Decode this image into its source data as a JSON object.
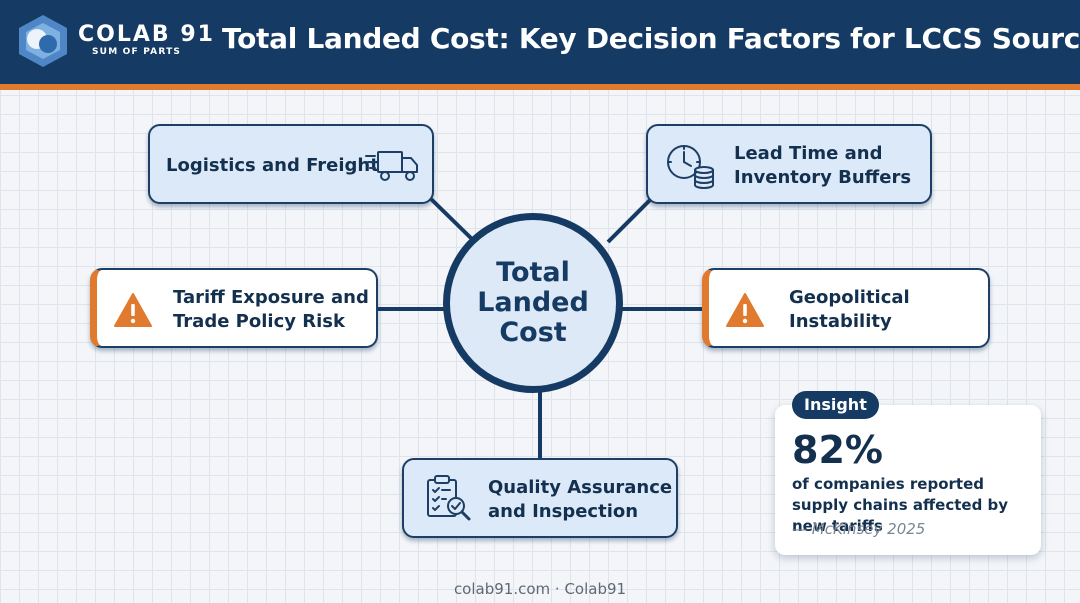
{
  "brand": {
    "name": "COLAB 91",
    "tagline": "SUM OF PARTS"
  },
  "title": "Total Landed Cost: Key Decision Factors for LCCS Sourcing",
  "hub": {
    "label": "Total Landed Cost"
  },
  "factors": {
    "logistics": {
      "label_line1": "Logistics and Freight",
      "icon": "delivery-truck-icon"
    },
    "lead_time": {
      "label_line1": "Lead Time and",
      "label_line2": "Inventory Buffers",
      "icon": "clock-coins-icon"
    },
    "tariff": {
      "label_line1": "Tariff Exposure and",
      "label_line2": "Trade Policy Risk",
      "icon": "warning-icon"
    },
    "geopolitical": {
      "label_line1": "Geopolitical",
      "label_line2": "Instability",
      "icon": "warning-icon"
    },
    "quality": {
      "label_line1": "Quality Assurance",
      "label_line2": "and Inspection",
      "icon": "clipboard-inspect-icon"
    }
  },
  "insight": {
    "badge": "Insight",
    "stat": "82%",
    "description": "of companies reported supply chains affected by new tariffs",
    "source": "— McKinsey 2025"
  },
  "footer": "colab91.com · Colab91",
  "colors": {
    "navy": "#153a63",
    "accent_orange": "#e07a2e",
    "card_blue": "#dce9f8",
    "warning": "#e07a2e"
  }
}
